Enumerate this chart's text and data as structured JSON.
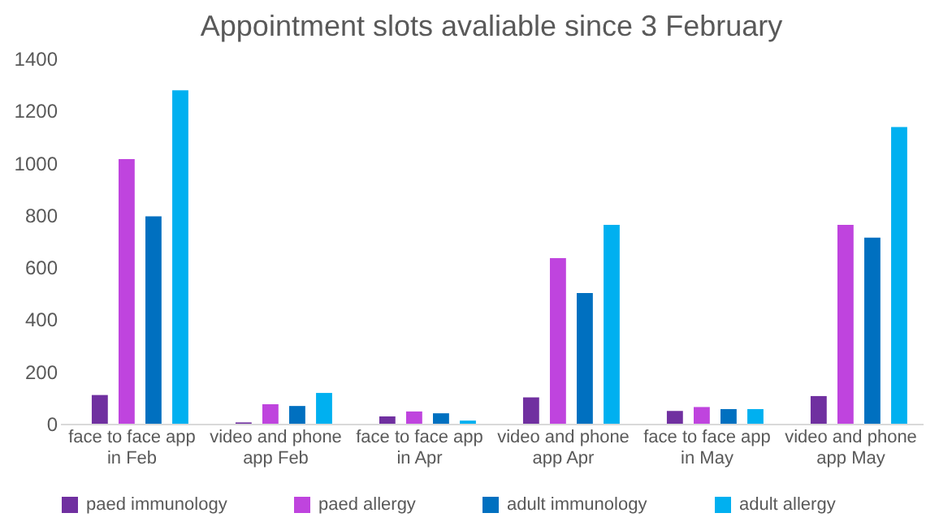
{
  "chart_data": {
    "type": "bar",
    "title": "Appointment slots avaliable since 3 February",
    "categories": [
      "face to face app in Feb",
      "video and phone app Feb",
      "face to face app in Apr",
      "video and phone app Apr",
      "face to face app in May",
      "video and phone app May"
    ],
    "series": [
      {
        "name": "paed immunology",
        "color": "#7030a0",
        "values": [
          110,
          5,
          28,
          101,
          49,
          106
        ]
      },
      {
        "name": "paed allergy",
        "color": "#bf44de",
        "values": [
          1014,
          75,
          47,
          635,
          64,
          762
        ]
      },
      {
        "name": "adult immunology",
        "color": "#0070c0",
        "values": [
          795,
          68,
          40,
          501,
          56,
          713
        ]
      },
      {
        "name": "adult allergy",
        "color": "#00b0f0",
        "values": [
          1278,
          118,
          12,
          762,
          56,
          1137
        ]
      }
    ],
    "ylim": [
      0,
      1400
    ],
    "yticks": [
      0,
      200,
      400,
      600,
      800,
      1000,
      1200,
      1400
    ],
    "grid": false,
    "legend": "bottom"
  }
}
